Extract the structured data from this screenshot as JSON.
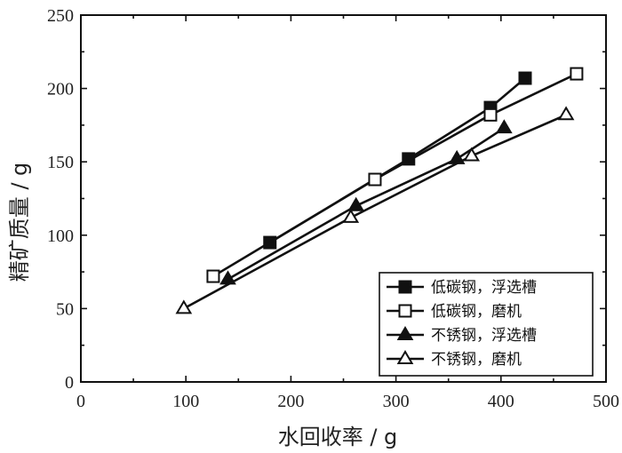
{
  "chart_data": {
    "type": "line",
    "xlabel": "水回收率 / g",
    "ylabel": "精矿质量 / g",
    "xlim": [
      0,
      500
    ],
    "ylim": [
      0,
      250
    ],
    "xticks": [
      0,
      100,
      200,
      300,
      400,
      500
    ],
    "yticks": [
      0,
      50,
      100,
      150,
      200,
      250
    ],
    "grid": false,
    "legend_position": "bottom-right",
    "series": [
      {
        "name": "低碳钢，浮选槽",
        "marker": "square-filled",
        "x": [
          180,
          312,
          390,
          423
        ],
        "y": [
          95,
          152,
          187,
          207
        ]
      },
      {
        "name": "低碳钢，磨机",
        "marker": "square-open",
        "x": [
          126,
          280,
          390,
          472
        ],
        "y": [
          72,
          138,
          182,
          210
        ]
      },
      {
        "name": "不锈钢，浮选槽",
        "marker": "triangle-filled",
        "x": [
          140,
          262,
          358,
          403
        ],
        "y": [
          70,
          120,
          152,
          173
        ]
      },
      {
        "name": "不锈钢，磨机",
        "marker": "triangle-open",
        "x": [
          98,
          257,
          372,
          462
        ],
        "y": [
          50,
          112,
          154,
          182
        ]
      }
    ]
  }
}
